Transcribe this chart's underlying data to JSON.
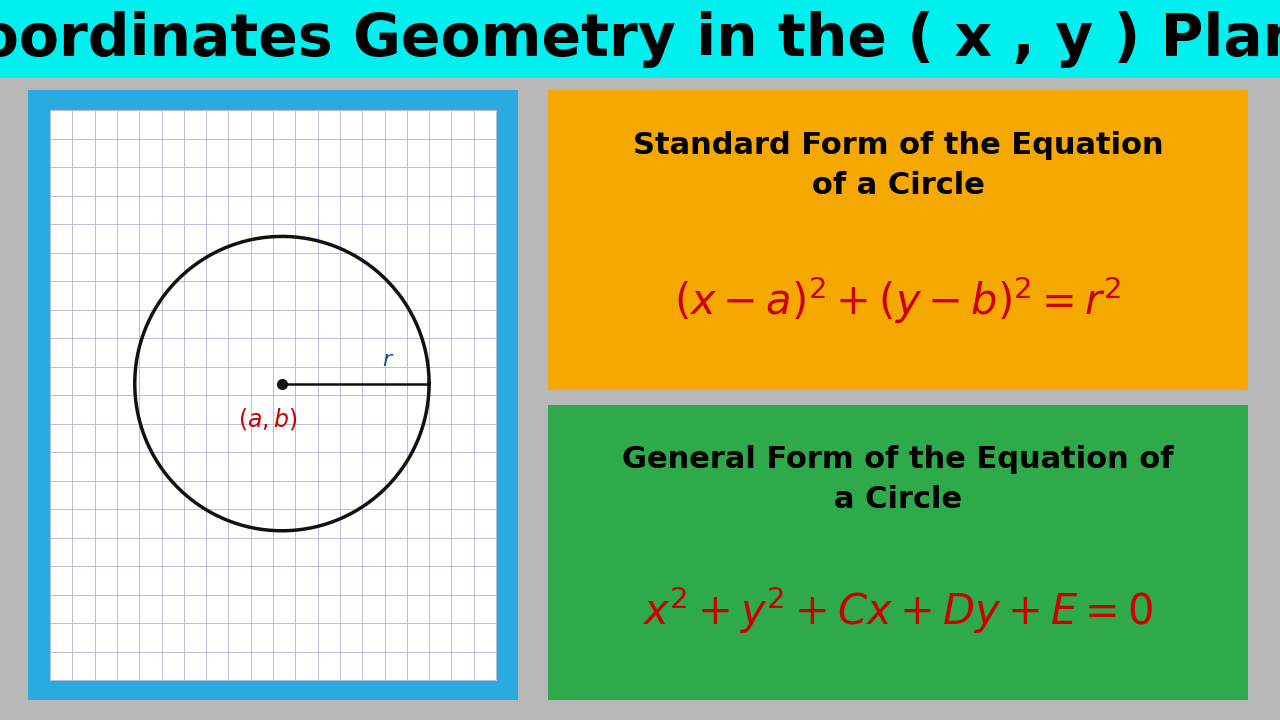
{
  "title": "Coordinates Geometry in the ( x , y ) Plane",
  "title_bg": "#00EFEF",
  "title_color": "#000000",
  "title_fontsize": 42,
  "main_bg": "#B8B8B8",
  "left_border_color": "#29ABE2",
  "grid_bg": "#FFFFFF",
  "grid_color": "#BBBBDD",
  "circle_color": "#111111",
  "center_dot_color": "#111111",
  "radius_line_color": "#111111",
  "center_label_color": "#CC0000",
  "r_label_color": "#1155AA",
  "standard_box_bg": "#F5A800",
  "standard_title_color": "#000000",
  "standard_eq_color": "#CC0000",
  "general_box_bg": "#2EAA4A",
  "general_title_color": "#000000",
  "general_eq_color": "#CC0000",
  "standard_title_line1": "Standard Form of the Equation",
  "standard_title_line2": "of a Circle",
  "standard_eq": "$(x - a)^2 + (y - b)^2 = r^2$",
  "general_title_line1": "General Form of the Equation of",
  "general_title_line2": "a Circle",
  "general_eq": "$x^2 + y^2 + Cx + Dy + E = 0$"
}
